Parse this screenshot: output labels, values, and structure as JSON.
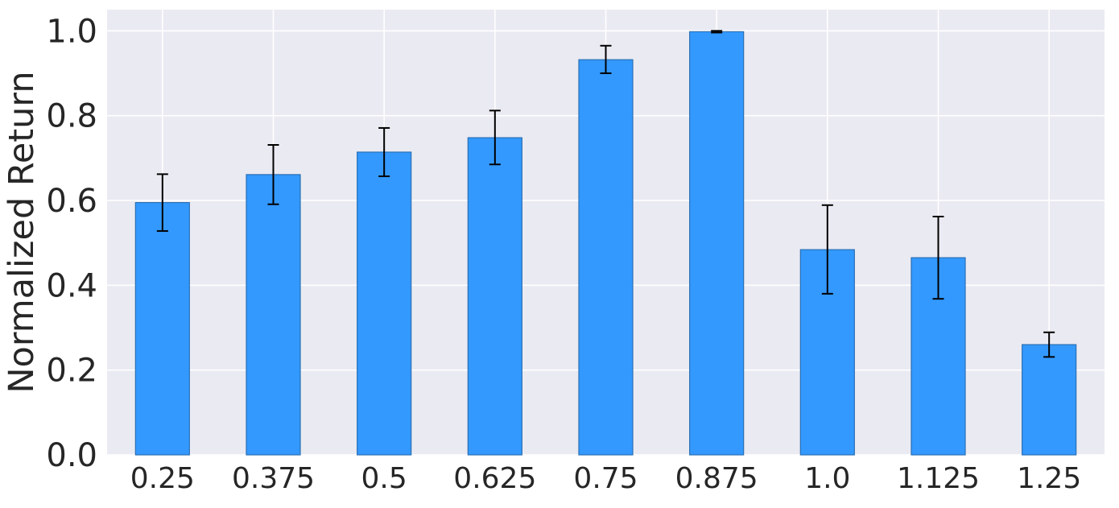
{
  "chart_data": {
    "type": "bar",
    "title": "",
    "xlabel": "",
    "ylabel": "Normalized Return",
    "categories": [
      "0.25",
      "0.375",
      "0.5",
      "0.625",
      "0.75",
      "0.875",
      "1.0",
      "1.125",
      "1.25"
    ],
    "values": [
      0.595,
      0.661,
      0.714,
      0.748,
      0.932,
      0.998,
      0.484,
      0.465,
      0.26
    ],
    "error_low": [
      0.528,
      0.591,
      0.657,
      0.685,
      0.9,
      0.996,
      0.38,
      0.368,
      0.231
    ],
    "error_high": [
      0.662,
      0.731,
      0.771,
      0.812,
      0.965,
      1.0,
      0.589,
      0.562,
      0.289
    ],
    "ylim": [
      0,
      1.05
    ],
    "yticks": [
      "0.0",
      "0.2",
      "0.4",
      "0.6",
      "0.8",
      "1.0"
    ],
    "grid": true,
    "legend": "none",
    "colors": {
      "bar": "#3399ff",
      "bar_edge": "#2a6fb3",
      "error_bar": "#000000",
      "plot_background": "#eaeaf2",
      "grid": "#ffffff",
      "text": "#262626"
    }
  }
}
